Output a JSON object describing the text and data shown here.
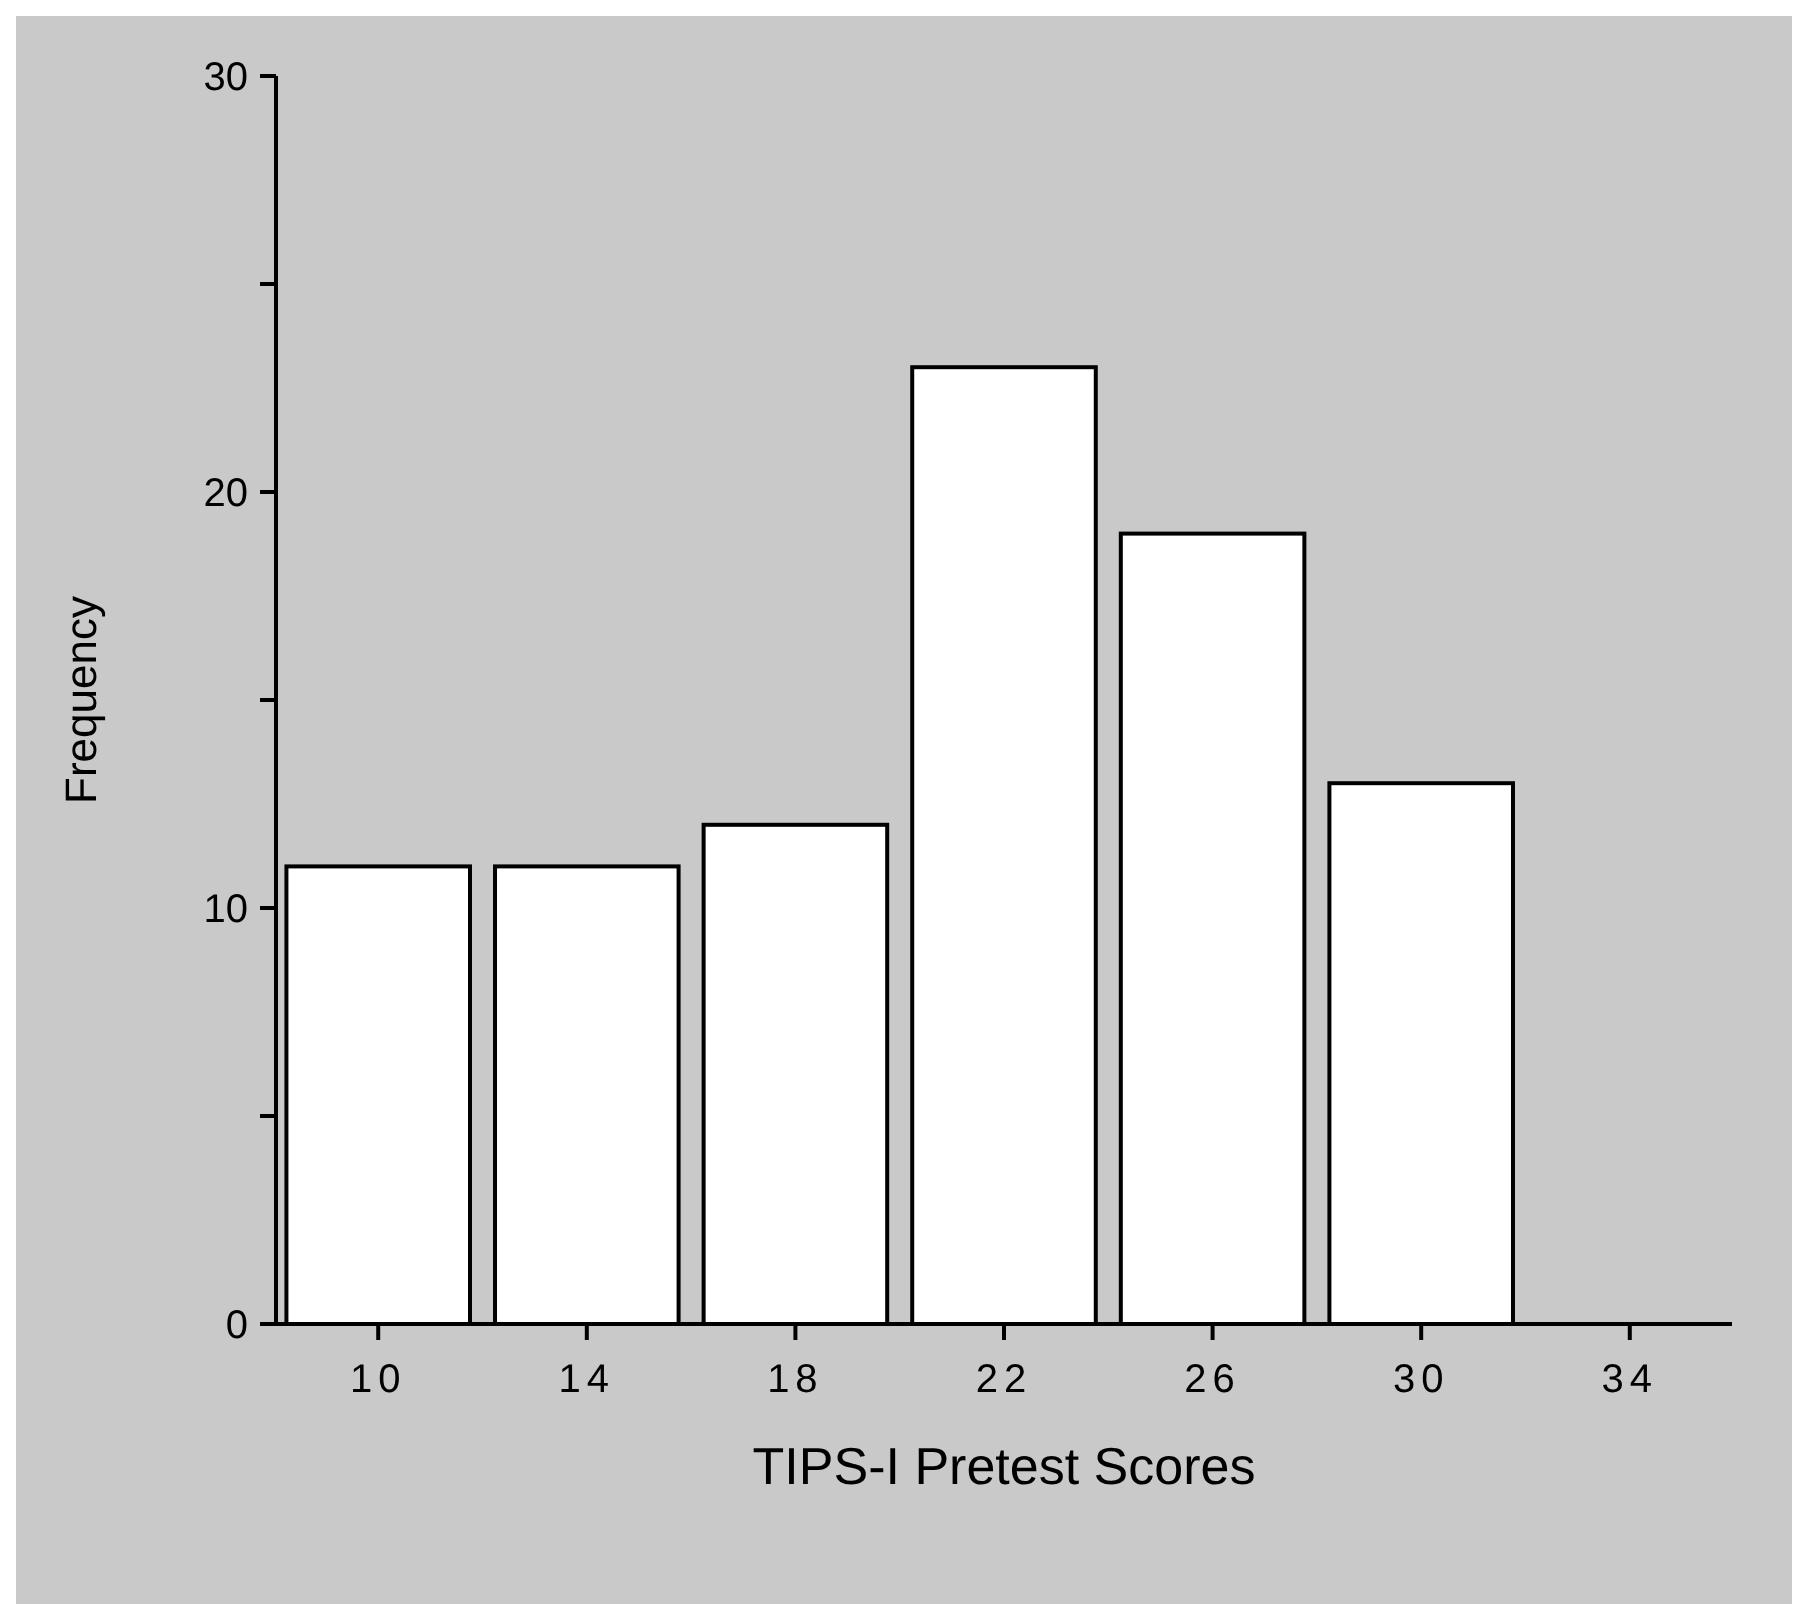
{
  "chart_data": {
    "type": "bar",
    "xlabel": "TIPS-I Pretest Scores",
    "ylabel": "Frequency",
    "categories": [
      "10",
      "14",
      "18",
      "22",
      "26",
      "30",
      "34"
    ],
    "values": [
      11,
      11,
      12,
      23,
      19,
      13,
      0
    ],
    "color": "#ffffff",
    "ylim": [
      0,
      30
    ],
    "yticks": [
      0,
      {
        "value": 5,
        "label": null
      },
      10,
      {
        "value": 15,
        "label": null
      },
      20,
      {
        "value": 25,
        "label": null
      },
      30
    ],
    "grid": false
  }
}
